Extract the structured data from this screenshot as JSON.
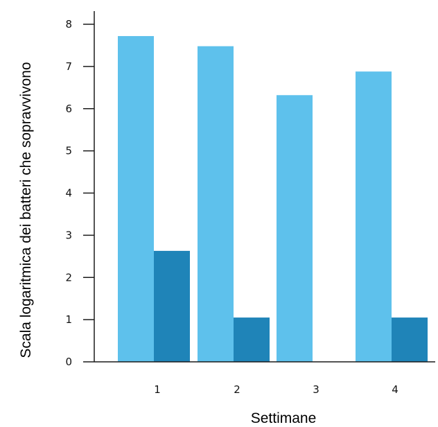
{
  "chart_data": {
    "type": "bar",
    "title": "",
    "xlabel": "Settimane",
    "ylabel": "Scala logaritmica dei batteri che sopravvivono",
    "categories": [
      "1",
      "2",
      "3",
      "4"
    ],
    "ylim": [
      0,
      8
    ],
    "yticks": [
      "0",
      "1",
      "2",
      "3",
      "4",
      "5",
      "6",
      "7",
      "8"
    ],
    "grid": false,
    "legend": "none",
    "series": [
      {
        "values": [
          7.72,
          7.48,
          6.32,
          6.88
        ],
        "color": "#5EC1EC"
      },
      {
        "values": [
          2.63,
          1.05,
          0,
          1.05
        ],
        "color": "#1F84B8"
      }
    ]
  }
}
